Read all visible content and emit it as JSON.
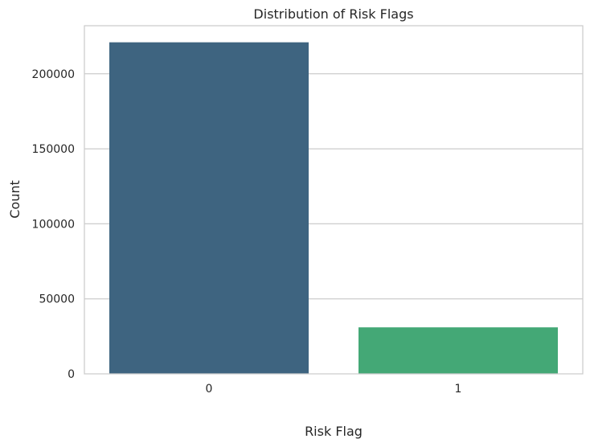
{
  "chart_data": {
    "type": "bar",
    "title": "Distribution of Risk Flags",
    "xlabel": "Risk Flag",
    "ylabel": "Count",
    "categories": [
      "0",
      "1"
    ],
    "values": [
      221000,
      30996
    ],
    "colors": [
      "#3e6480",
      "#44a876"
    ],
    "ylim": [
      0,
      232050
    ],
    "yticks": [
      0,
      50000,
      100000,
      150000,
      200000
    ],
    "ytick_labels": [
      "0",
      "50000",
      "100000",
      "150000",
      "200000"
    ],
    "grid": true,
    "legend": "none"
  }
}
